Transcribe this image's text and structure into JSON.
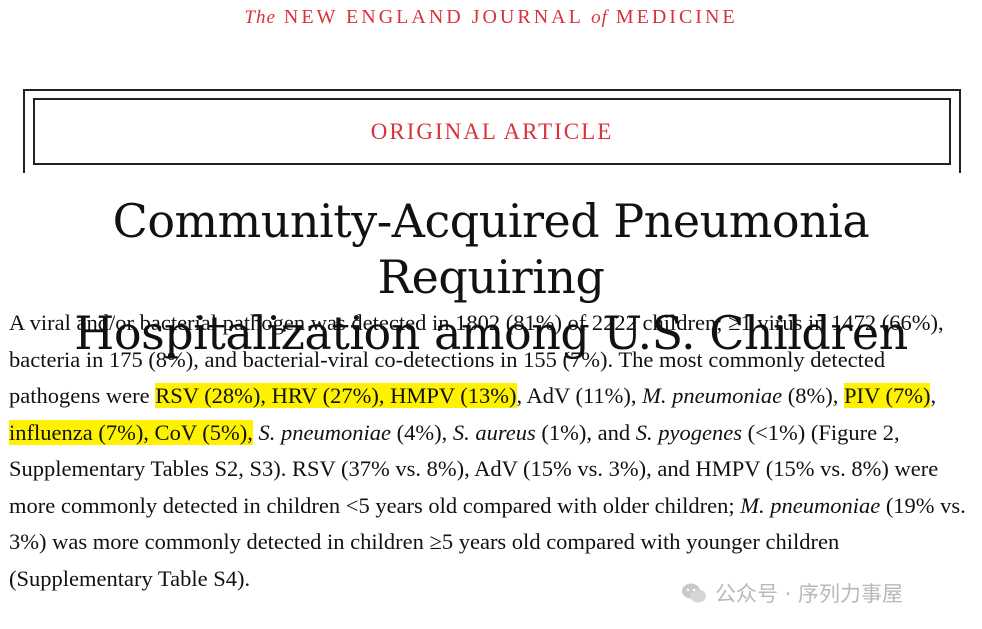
{
  "masthead": {
    "the": "The",
    "new_england": "NEW ENGLAND",
    "journal": "JOURNAL",
    "of": "of",
    "medicine": "MEDICINE"
  },
  "section_label": "ORIGINAL ARTICLE",
  "title_line1": "Community-Acquired Pneumonia Requiring",
  "title_line2": "Hospitalization among U.S. Children",
  "paragraph": {
    "s1": "A viral and/or bacterial pathogen was detected in 1802 (81%) of 2222 children; ≥1 virus in 1472 (66%), bacteria in 175 (8%), and bacterial-viral co-detections in 155 (7%). The most commonly detected pathogens were ",
    "hl1": "RSV (28%), HRV (27%), HMPV (13%)",
    "s2": ", AdV (11%), ",
    "mp1": "M. pneumoniae",
    "s3": " (8%), ",
    "hl2": "PIV (7%)",
    "s4": ", ",
    "hl3": "influenza (7%), CoV (5%),",
    "s5": " ",
    "sp": "S. pneumoniae",
    "s6": " (4%), ",
    "sa": "S. aureus",
    "s7": " (1%), and ",
    "spy": "S. pyogenes",
    "s8": " (<1%) (Figure 2, Supplementary Tables S2, S3). RSV (37% vs. 8%), AdV (15% vs. 3%), and HMPV (15% vs. 8%) were more commonly detected in children <5 years old compared with older children; ",
    "mp2": "M. pneumoniae",
    "s9": " (19% vs. 3%) was more commonly detected in children ≥5 years old compared with younger children (Supplementary Table S4)."
  },
  "watermark": {
    "icon": "wechat-icon",
    "text": "公众号 · 序列力事屋"
  }
}
